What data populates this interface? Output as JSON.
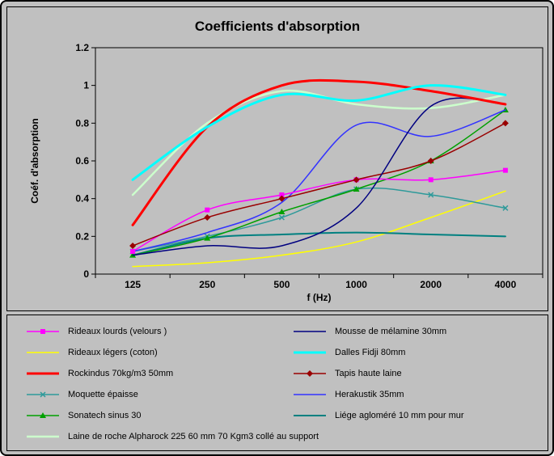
{
  "window": {
    "background": "#c0c0c0",
    "border_color": "#000000"
  },
  "chart_data": {
    "type": "line",
    "title": "Coefficients d'absorption",
    "xlabel": "f (Hz)",
    "ylabel": "Coéf. d'absorption",
    "categories": [
      "125",
      "250",
      "500",
      "1000",
      "2000",
      "4000"
    ],
    "ylim": [
      0,
      1.2
    ],
    "y_ticks": [
      "0",
      "0.2",
      "0.4",
      "0.6",
      "0.8",
      "1",
      "1.2"
    ],
    "grid": false,
    "legend_position": "bottom",
    "series": [
      {
        "name": "Rideaux lourds (velours )",
        "color": "#FF00FF",
        "width": 1.5,
        "marker": "square",
        "values": [
          0.12,
          0.34,
          0.42,
          0.5,
          0.5,
          0.55
        ]
      },
      {
        "name": "Rideaux légers (coton)",
        "color": "#FFFF00",
        "width": 1.5,
        "marker": "none",
        "values": [
          0.04,
          0.06,
          0.1,
          0.17,
          0.3,
          0.44
        ]
      },
      {
        "name": "Rockindus 70kg/m3 50mm",
        "color": "#FF0000",
        "width": 3,
        "marker": "none",
        "values": [
          0.26,
          0.78,
          1.0,
          1.02,
          0.97,
          0.9
        ]
      },
      {
        "name": "Moquette épaisse",
        "color": "#2E9A9A",
        "width": 1.5,
        "marker": "x",
        "values": [
          0.12,
          0.2,
          0.3,
          0.45,
          0.42,
          0.35
        ]
      },
      {
        "name": "Sonatech sinus 30",
        "color": "#00A000",
        "width": 1.5,
        "marker": "triangle",
        "values": [
          0.1,
          0.19,
          0.33,
          0.45,
          0.6,
          0.87
        ]
      },
      {
        "name": "Laine de roche Alpharock 225 60 mm 70 Kgm3 collé au support",
        "color": "#CCFFCC",
        "width": 2.5,
        "marker": "none",
        "values": [
          0.42,
          0.8,
          0.97,
          0.9,
          0.88,
          0.95
        ]
      },
      {
        "name": "Mousse de mélamine 30mm",
        "color": "#000080",
        "width": 1.5,
        "marker": "none",
        "values": [
          0.1,
          0.15,
          0.15,
          0.35,
          0.89,
          0.9
        ]
      },
      {
        "name": "Dalles Fidji 80mm",
        "color": "#00FFFF",
        "width": 3,
        "marker": "none",
        "values": [
          0.5,
          0.78,
          0.95,
          0.92,
          1.0,
          0.95
        ]
      },
      {
        "name": "Tapis haute laine",
        "color": "#990000",
        "width": 1.5,
        "marker": "diamond",
        "values": [
          0.15,
          0.3,
          0.4,
          0.5,
          0.6,
          0.8
        ]
      },
      {
        "name": "Herakustik 35mm",
        "color": "#3333FF",
        "width": 1.5,
        "marker": "none",
        "values": [
          0.12,
          0.22,
          0.38,
          0.79,
          0.73,
          0.87
        ]
      },
      {
        "name": "Liége agloméré 10 mm pour mur",
        "color": "#008080",
        "width": 2,
        "marker": "none",
        "values": [
          0.1,
          0.19,
          0.21,
          0.22,
          0.21,
          0.2
        ]
      }
    ]
  },
  "legend": {
    "columns": [
      [
        0,
        1,
        2,
        3,
        4,
        5
      ],
      [
        6,
        7,
        8,
        9,
        10
      ]
    ]
  }
}
